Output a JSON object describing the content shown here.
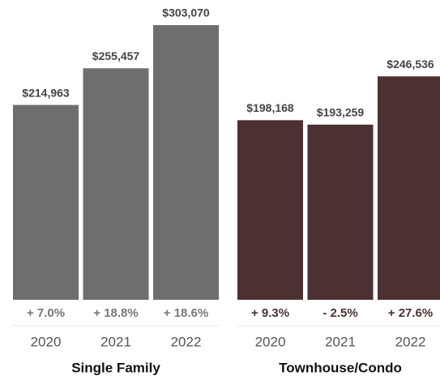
{
  "chart_data": [
    {
      "type": "bar",
      "title": "Single Family",
      "categories": [
        "2020",
        "2021",
        "2022"
      ],
      "values": [
        214963,
        255457,
        303070
      ],
      "value_labels": [
        "$214,963",
        "$255,457",
        "$303,070"
      ],
      "change_labels": [
        "+ 7.0%",
        "+ 18.8%",
        "+ 18.6%"
      ],
      "color": "#6d6e70",
      "change_color": "#77787a"
    },
    {
      "type": "bar",
      "title": "Townhouse/Condo",
      "categories": [
        "2020",
        "2021",
        "2022"
      ],
      "values": [
        198168,
        193259,
        246536
      ],
      "value_labels": [
        "$198,168",
        "$193,259",
        "$246,536"
      ],
      "change_labels": [
        "+ 9.3%",
        "- 2.5%",
        "+ 27.6%"
      ],
      "color": "#4b3132",
      "change_color": "#4b3132"
    }
  ]
}
